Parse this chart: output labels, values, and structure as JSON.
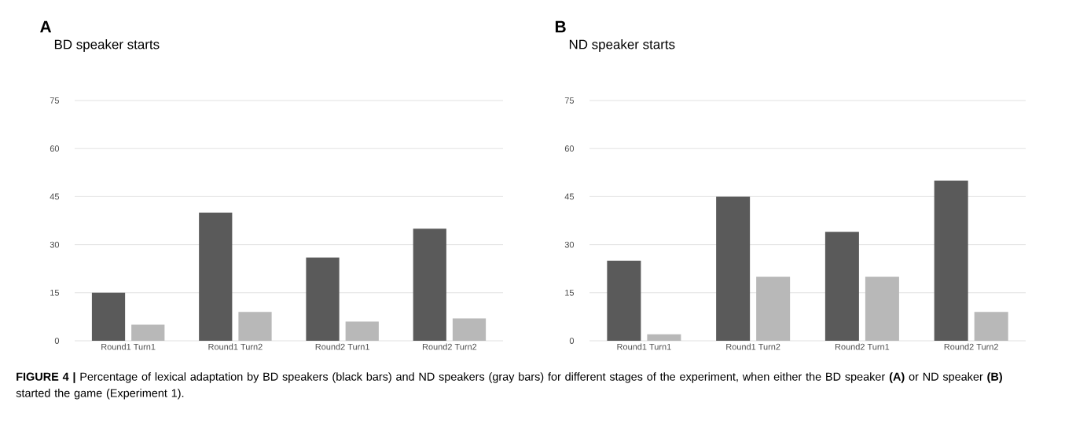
{
  "chart_data": [
    {
      "type": "bar",
      "title": "BD speaker starts",
      "annotations": [
        "A"
      ],
      "categories": [
        "Round1 Turn1",
        "Round1 Turn2",
        "Round2 Turn1",
        "Round2 Turn2"
      ],
      "series": [
        {
          "color": "#5a5a5a",
          "values": [
            15,
            40,
            26,
            35
          ]
        },
        {
          "color": "#b8b8b8",
          "values": [
            5,
            9,
            6,
            7
          ]
        }
      ],
      "ylim": [
        0,
        75
      ],
      "yticks": [
        0,
        15,
        30,
        45,
        60,
        75
      ],
      "grid": "y"
    },
    {
      "type": "bar",
      "title": "ND speaker starts",
      "annotations": [
        "B",
        "**FIGURE 4 |** Percentage of lexical adaptation by BD speakers (black bars) and ND speakers (gray bars) for different stages of the experiment, when either the BD speaker **(A)** or ND speaker **(B)** started the game (Experiment 1)."
      ],
      "categories": [
        "Round1 Turn1",
        "Round1 Turn2",
        "Round2 Turn1",
        "Round2 Turn2"
      ],
      "series": [
        {
          "color": "#5a5a5a",
          "values": [
            25,
            45,
            34,
            50
          ]
        },
        {
          "color": "#b8b8b8",
          "values": [
            2,
            20,
            20,
            9
          ]
        }
      ],
      "ylim": [
        0,
        75
      ],
      "yticks": [
        0,
        15,
        30,
        45,
        60,
        75
      ],
      "grid": "y"
    }
  ]
}
